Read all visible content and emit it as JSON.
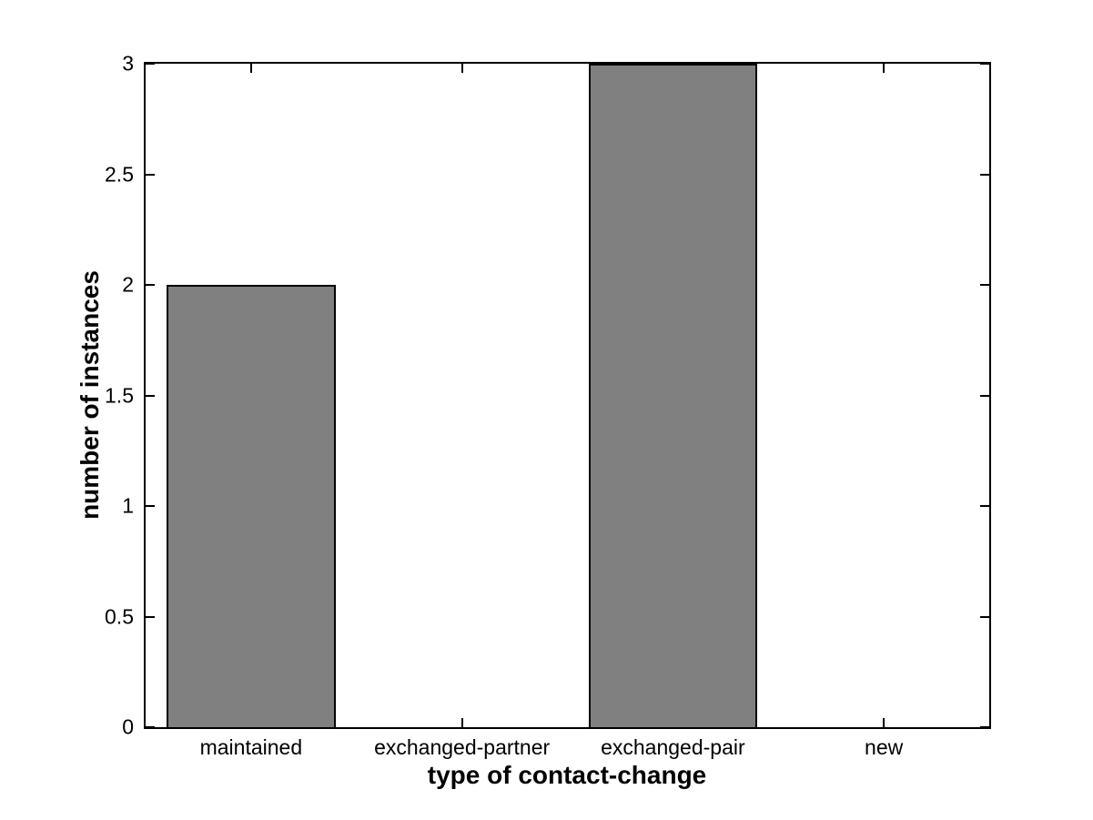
{
  "chart_data": {
    "type": "bar",
    "categories": [
      "maintained",
      "exchanged-partner",
      "exchanged-pair",
      "new"
    ],
    "values": [
      2,
      0,
      3,
      0
    ],
    "xlabel": "type of contact-change",
    "ylabel": "number of instances",
    "ylim": [
      0,
      3
    ],
    "yticks": [
      0,
      0.5,
      1,
      1.5,
      2,
      2.5,
      3
    ],
    "ytick_labels": [
      "0",
      "0.5",
      "1",
      "1.5",
      "2",
      "2.5",
      "3"
    ],
    "bar_color": "#808080",
    "bar_edge_color": "#000000",
    "axis_color": "#000000",
    "background_color": "#ffffff",
    "bar_width_fraction": 0.8,
    "grid": false,
    "box": true,
    "tick_direction": "in"
  }
}
